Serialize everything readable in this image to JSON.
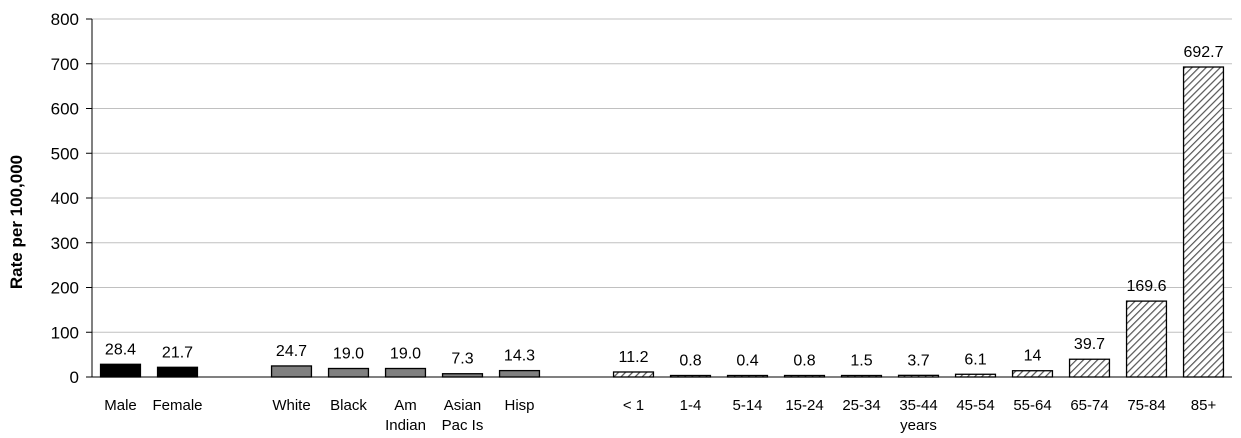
{
  "chart_data": {
    "type": "bar",
    "ylabel": "Rate per 100,000",
    "ylim": [
      0,
      800
    ],
    "yticks": [
      0,
      100,
      200,
      300,
      400,
      500,
      600,
      700,
      800
    ],
    "grid": true,
    "groups": [
      {
        "fill": "solid-black",
        "bars": [
          {
            "label": [
              "Male"
            ],
            "value": 28.4,
            "value_label": "28.4"
          },
          {
            "label": [
              "Female"
            ],
            "value": 21.7,
            "value_label": "21.7"
          }
        ]
      },
      {
        "fill": "solid-gray",
        "bars": [
          {
            "label": [
              "White"
            ],
            "value": 24.7,
            "value_label": "24.7"
          },
          {
            "label": [
              "Black"
            ],
            "value": 19.0,
            "value_label": "19.0"
          },
          {
            "label": [
              "Am",
              "Indian"
            ],
            "value": 19.0,
            "value_label": "19.0"
          },
          {
            "label": [
              "Asian",
              "Pac Is"
            ],
            "value": 7.3,
            "value_label": "7.3"
          },
          {
            "label": [
              "Hisp"
            ],
            "value": 14.3,
            "value_label": "14.3"
          }
        ]
      },
      {
        "fill": "hatched",
        "sublabel": "years",
        "bars": [
          {
            "label": [
              "< 1"
            ],
            "value": 11.2,
            "value_label": "11.2"
          },
          {
            "label": [
              "1-4"
            ],
            "value": 0.8,
            "value_label": "0.8"
          },
          {
            "label": [
              "5-14"
            ],
            "value": 0.4,
            "value_label": "0.4"
          },
          {
            "label": [
              "15-24"
            ],
            "value": 0.8,
            "value_label": "0.8"
          },
          {
            "label": [
              "25-34"
            ],
            "value": 1.5,
            "value_label": "1.5"
          },
          {
            "label": [
              "35-44"
            ],
            "value": 3.7,
            "value_label": "3.7"
          },
          {
            "label": [
              "45-54"
            ],
            "value": 6.1,
            "value_label": "6.1"
          },
          {
            "label": [
              "55-64"
            ],
            "value": 14,
            "value_label": "14"
          },
          {
            "label": [
              "65-74"
            ],
            "value": 39.7,
            "value_label": "39.7"
          },
          {
            "label": [
              "75-84"
            ],
            "value": 169.6,
            "value_label": "169.6"
          },
          {
            "label": [
              "85+"
            ],
            "value": 692.7,
            "value_label": "692.7"
          }
        ]
      }
    ],
    "colors": {
      "solid-black": "#000000",
      "solid-gray": "#808080",
      "hatch_line": "#555555",
      "grid": "#c0c0c0",
      "axis": "#000000"
    }
  }
}
